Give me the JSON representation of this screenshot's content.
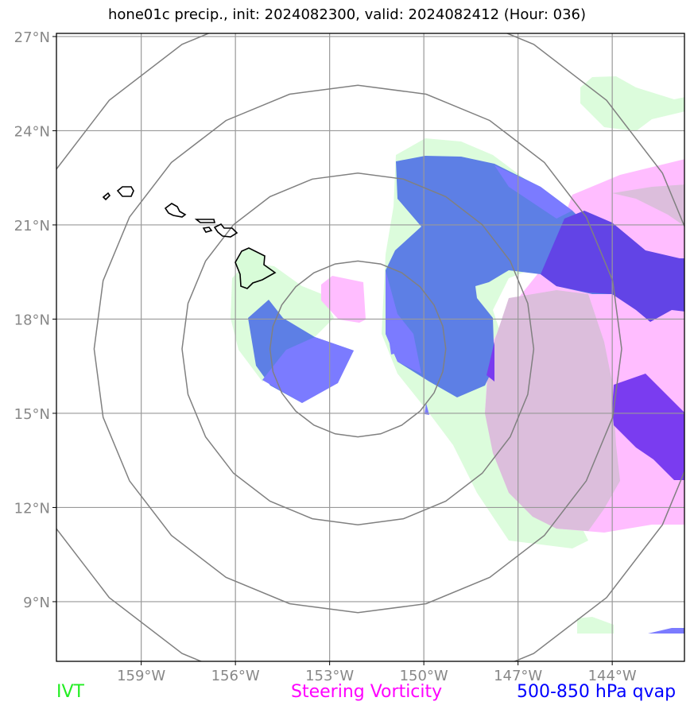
{
  "title": "hone01c precip., init: 2024082300, valid: 2024082412 (Hour: 036)",
  "map": {
    "lon_range": [
      -161.7,
      -141.7
    ],
    "lat_range": [
      7.1,
      27.1
    ],
    "lat_ticks": [
      {
        "value": 27,
        "label": "27°N"
      },
      {
        "value": 24,
        "label": "24°N"
      },
      {
        "value": 21,
        "label": "21°N"
      },
      {
        "value": 18,
        "label": "18°N"
      },
      {
        "value": 15,
        "label": "15°N"
      },
      {
        "value": 12,
        "label": "12°N"
      },
      {
        "value": 9,
        "label": "9°N"
      }
    ],
    "lon_ticks": [
      {
        "value": -159,
        "label": "159°W"
      },
      {
        "value": -156,
        "label": "156°W"
      },
      {
        "value": -153,
        "label": "153°W"
      },
      {
        "value": -150,
        "label": "150°W"
      },
      {
        "value": -147,
        "label": "147°W"
      },
      {
        "value": -144,
        "label": "144°W"
      }
    ],
    "grid": true,
    "range_rings": {
      "center": [
        -152.1,
        17.05
      ],
      "radii_deg": [
        2.8,
        5.6,
        8.4,
        11.2
      ]
    }
  },
  "legend": {
    "ivt": {
      "label": "IVT",
      "color": "#22ee22"
    },
    "vorticity": {
      "label": "Steering Vorticity",
      "color": "#ff00ff"
    },
    "qvap": {
      "label": "500-850 hPa qvap",
      "color": "#0000ff"
    }
  }
}
